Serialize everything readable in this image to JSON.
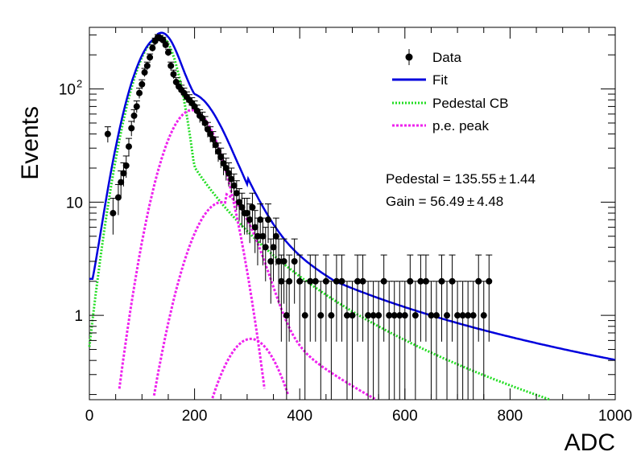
{
  "chart_data": {
    "type": "scatter",
    "xlabel": "ADC",
    "ylabel": "Events",
    "xlim": [
      0,
      1000
    ],
    "ylim": [
      0.18,
      350
    ],
    "y_scale": "log",
    "grid": false,
    "legend_position": "top-right",
    "x_ticks": [
      "0",
      "200",
      "400",
      "600",
      "800",
      "1000"
    ],
    "y_ticks": [
      {
        "value": 1,
        "label": "1",
        "sup": ""
      },
      {
        "value": 10,
        "label": "10",
        "sup": ""
      },
      {
        "value": 100,
        "label": "10",
        "sup": "2"
      }
    ],
    "legend": [
      {
        "key": "data",
        "label": "Data",
        "style": "marker"
      },
      {
        "key": "fit",
        "label": "Fit",
        "style": "line",
        "color": "#0000dd"
      },
      {
        "key": "ped",
        "label": "Pedestal CB",
        "style": "dotted",
        "color": "#22dd22"
      },
      {
        "key": "pe",
        "label": "p.e. peak",
        "style": "dotted",
        "color": "#ee22ee"
      }
    ],
    "annotations": [
      {
        "key": "pedestal",
        "label": "Pedestal = 135.55",
        "pm": "±",
        "err": "1.44"
      },
      {
        "key": "gain",
        "label": "Gain = 56.49",
        "pm": "±",
        "err": "4.48"
      }
    ],
    "fit_params": {
      "pedestal": 135.55,
      "gain": 56.49,
      "sigma": 28
    },
    "colors": {
      "data": "#000000",
      "fit": "#0000dd",
      "pedestal": "#22dd22",
      "pe_peak": "#ee22ee"
    },
    "data_series": {
      "name": "Data",
      "x": [
        35,
        45,
        55,
        60,
        65,
        70,
        75,
        80,
        85,
        90,
        95,
        100,
        105,
        110,
        115,
        120,
        125,
        130,
        135,
        140,
        145,
        150,
        155,
        160,
        165,
        170,
        175,
        180,
        185,
        190,
        195,
        200,
        205,
        210,
        215,
        220,
        225,
        230,
        235,
        240,
        245,
        250,
        255,
        260,
        265,
        270,
        275,
        280,
        285,
        290,
        295,
        300,
        305,
        310,
        315,
        320,
        325,
        330,
        335,
        340,
        345,
        350,
        355,
        360,
        365,
        370,
        375,
        380,
        390,
        400,
        410,
        420,
        430,
        440,
        450,
        460,
        470,
        480,
        490,
        500,
        510,
        520,
        530,
        540,
        550,
        560,
        570,
        580,
        590,
        600,
        610,
        620,
        630,
        640,
        650,
        660,
        670,
        680,
        690,
        700,
        710,
        720,
        730,
        740,
        750,
        760
      ],
      "y": [
        40,
        8,
        11,
        15,
        18,
        21,
        31,
        45,
        58,
        70,
        92,
        110,
        140,
        160,
        190,
        230,
        265,
        285,
        280,
        270,
        245,
        210,
        160,
        135,
        115,
        105,
        98,
        92,
        85,
        80,
        75,
        70,
        64,
        58,
        55,
        50,
        44,
        40,
        36,
        32,
        28,
        25,
        22,
        20,
        18,
        16,
        14,
        12,
        10,
        9,
        8,
        8,
        7,
        9,
        6,
        5,
        7,
        5,
        4,
        7,
        3,
        4,
        5,
        3,
        2,
        3,
        1,
        2,
        3,
        2,
        1,
        2,
        2,
        1,
        2,
        1,
        2,
        2,
        1,
        1,
        2,
        2,
        1,
        1,
        1,
        2,
        1,
        1,
        1,
        1,
        2,
        1,
        2,
        2,
        1,
        1,
        2,
        1,
        2,
        1,
        1,
        1,
        1,
        2,
        1,
        2
      ]
    }
  }
}
